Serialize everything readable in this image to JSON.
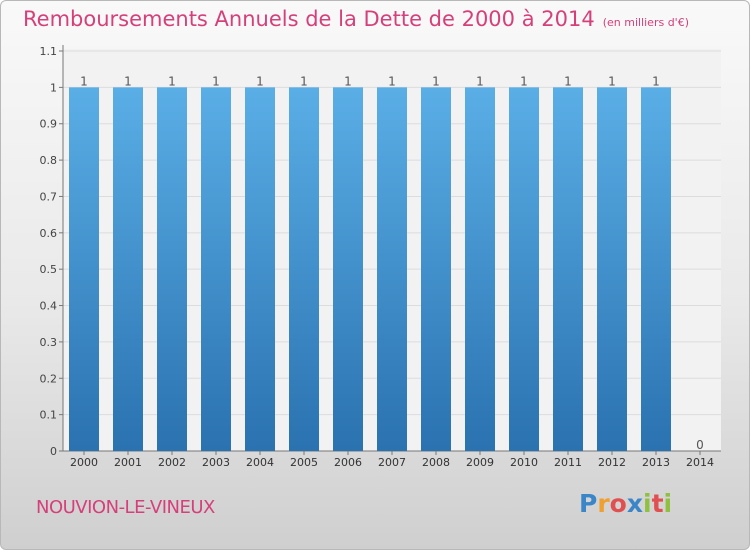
{
  "title": "Remboursements Annuels de la Dette de 2000 à 2014",
  "unit_note": "(en milliers d'€)",
  "commune": "NOUVION-LE-VINEUX",
  "logo": {
    "letters": [
      "P",
      "r",
      "o",
      "x",
      "i",
      "t",
      "i"
    ],
    "colors": [
      "#3a86c8",
      "#f0a030",
      "#e05050",
      "#3a86c8",
      "#90c040",
      "#e05050",
      "#90c040"
    ]
  },
  "colors": {
    "bar_top": "#5aaee6",
    "bar_bottom": "#2a72b0",
    "accent": "#d6407a"
  },
  "chart_data": {
    "type": "bar",
    "categories": [
      "2000",
      "2001",
      "2002",
      "2003",
      "2004",
      "2005",
      "2006",
      "2007",
      "2008",
      "2009",
      "2010",
      "2011",
      "2012",
      "2013",
      "2014"
    ],
    "values": [
      1,
      1,
      1,
      1,
      1,
      1,
      1,
      1,
      1,
      1,
      1,
      1,
      1,
      1,
      0
    ],
    "data_labels": [
      "1",
      "1",
      "1",
      "1",
      "1",
      "1",
      "1",
      "1",
      "1",
      "1",
      "1",
      "1",
      "1",
      "1",
      "0"
    ],
    "yticks": [
      0,
      0.1,
      0.2,
      0.3,
      0.4,
      0.5,
      0.6,
      0.7,
      0.8,
      0.9,
      1,
      1.1
    ],
    "ytick_labels": [
      "0",
      "0.1",
      "0.2",
      "0.3",
      "0.4",
      "0.5",
      "0.6",
      "0.7",
      "0.8",
      "0.9",
      "1",
      "1.1"
    ],
    "ylim": [
      0,
      1.1
    ],
    "grid": true,
    "legend": "none"
  }
}
